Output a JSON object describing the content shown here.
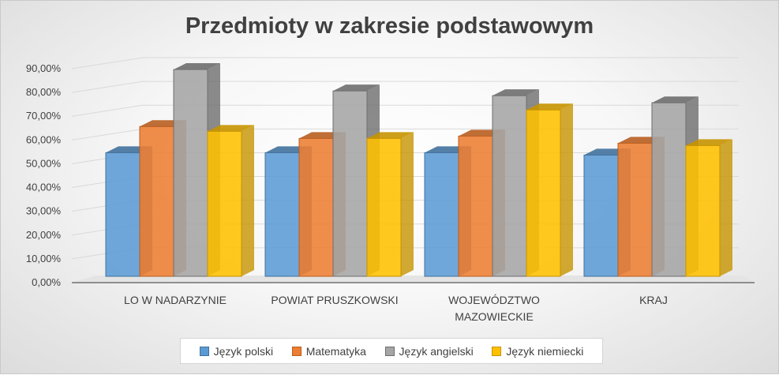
{
  "chart_data": {
    "type": "bar",
    "title": "Przedmioty w zakresie podstawowym",
    "xlabel": "",
    "ylabel": "",
    "ylim": [
      0,
      90
    ],
    "yticks": [
      "0,00%",
      "10,00%",
      "20,00%",
      "30,00%",
      "40,00%",
      "50,00%",
      "60,00%",
      "70,00%",
      "80,00%",
      "90,00%"
    ],
    "categories": [
      [
        "LO W NADARZYNIE"
      ],
      [
        "POWIAT PRUSZKOWSKI"
      ],
      [
        "WOJEWÓDZTWO",
        "MAZOWIECKIE"
      ],
      [
        "KRAJ"
      ]
    ],
    "series": [
      {
        "name": "Język polski",
        "values": [
          52,
          52,
          52,
          51
        ],
        "color": "#5b9bd5",
        "dark": "#41719c"
      },
      {
        "name": "Matematyka",
        "values": [
          63,
          58,
          59,
          56
        ],
        "color": "#ed7d31",
        "dark": "#b85e20"
      },
      {
        "name": "Język angielski",
        "values": [
          87,
          78,
          76,
          73
        ],
        "color": "#a5a5a5",
        "dark": "#6e6e6e"
      },
      {
        "name": "Język niemiecki",
        "values": [
          61,
          58,
          70,
          55
        ],
        "color": "#ffc000",
        "dark": "#c69300"
      }
    ],
    "legend_position": "bottom",
    "grid": true,
    "style": "3d-clustered-column"
  }
}
